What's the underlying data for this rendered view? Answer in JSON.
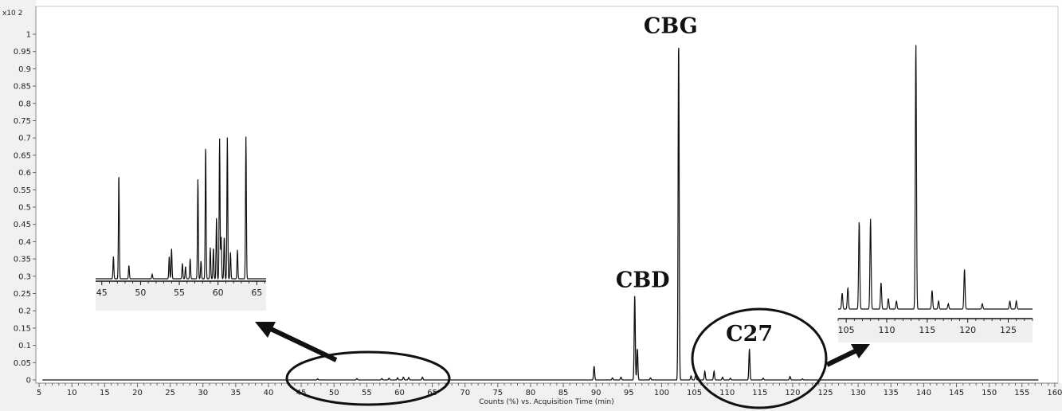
{
  "chart_data": {
    "type": "line",
    "title": "",
    "xlabel": "Counts (%) vs. Acquisition Time (min)",
    "ylabel": "",
    "y_multiplier": "x10 2",
    "xlim": [
      4.5,
      160.5
    ],
    "ylim": [
      0,
      1.08
    ],
    "grid": false,
    "x_ticks": [
      5,
      10,
      15,
      20,
      25,
      30,
      35,
      40,
      45,
      50,
      55,
      60,
      65,
      70,
      75,
      80,
      85,
      90,
      95,
      100,
      105,
      110,
      115,
      120,
      125,
      130,
      135,
      140,
      145,
      150,
      155,
      160
    ],
    "y_ticks": [
      0,
      0.05,
      0.1,
      0.15,
      0.2,
      0.25,
      0.3,
      0.35,
      0.4,
      0.45,
      0.5,
      0.55,
      0.6,
      0.65,
      0.7,
      0.75,
      0.8,
      0.85,
      0.9,
      0.95,
      1
    ],
    "line_color": "#111111",
    "series": [
      {
        "peaks": [
          {
            "x": 47.5,
            "y": 0.003
          },
          {
            "x": 53.5,
            "y": 0.004
          },
          {
            "x": 57.3,
            "y": 0.004
          },
          {
            "x": 58.4,
            "y": 0.005
          },
          {
            "x": 59.7,
            "y": 0.006
          },
          {
            "x": 60.6,
            "y": 0.008
          },
          {
            "x": 61.4,
            "y": 0.007
          },
          {
            "x": 63.5,
            "y": 0.008
          },
          {
            "x": 89.7,
            "y": 0.04
          },
          {
            "x": 92.5,
            "y": 0.006
          },
          {
            "x": 93.8,
            "y": 0.008
          },
          {
            "x": 95.9,
            "y": 0.245
          },
          {
            "x": 96.3,
            "y": 0.09
          },
          {
            "x": 98.3,
            "y": 0.006
          },
          {
            "x": 102.6,
            "y": 0.985
          },
          {
            "x": 104.5,
            "y": 0.012
          },
          {
            "x": 105.2,
            "y": 0.015
          },
          {
            "x": 106.6,
            "y": 0.025
          },
          {
            "x": 108.0,
            "y": 0.025
          },
          {
            "x": 109.3,
            "y": 0.008
          },
          {
            "x": 110.5,
            "y": 0.005
          },
          {
            "x": 113.4,
            "y": 0.09
          },
          {
            "x": 115.5,
            "y": 0.005
          },
          {
            "x": 119.6,
            "y": 0.01
          },
          {
            "x": 121.5,
            "y": 0.003
          }
        ]
      }
    ],
    "annotations": [
      {
        "text": "CBG",
        "x": 102.6,
        "y": 0.985
      },
      {
        "text": "CBD",
        "x": 95.9,
        "y": 0.245
      },
      {
        "text": "C27",
        "x": 113.4,
        "y": 0.09
      }
    ],
    "insets": [
      {
        "name": "inset-left",
        "x_ticks": [
          45,
          50,
          55,
          60,
          65
        ],
        "xlim": [
          44.2,
          66.2
        ],
        "highlight_range": [
          44,
          64
        ],
        "peaks": [
          {
            "x": 46.5,
            "y": 0.2
          },
          {
            "x": 47.2,
            "y": 0.95
          },
          {
            "x": 48.5,
            "y": 0.12
          },
          {
            "x": 51.5,
            "y": 0.04
          },
          {
            "x": 53.7,
            "y": 0.2
          },
          {
            "x": 54.0,
            "y": 0.27
          },
          {
            "x": 55.4,
            "y": 0.14
          },
          {
            "x": 55.8,
            "y": 0.11
          },
          {
            "x": 56.4,
            "y": 0.18
          },
          {
            "x": 57.4,
            "y": 0.9
          },
          {
            "x": 57.8,
            "y": 0.16
          },
          {
            "x": 58.4,
            "y": 1.2
          },
          {
            "x": 59.0,
            "y": 0.28
          },
          {
            "x": 59.4,
            "y": 0.28
          },
          {
            "x": 59.8,
            "y": 0.55
          },
          {
            "x": 60.2,
            "y": 1.26
          },
          {
            "x": 60.4,
            "y": 0.38
          },
          {
            "x": 60.8,
            "y": 0.38
          },
          {
            "x": 61.2,
            "y": 1.27
          },
          {
            "x": 61.6,
            "y": 0.24
          },
          {
            "x": 62.5,
            "y": 0.26
          },
          {
            "x": 63.6,
            "y": 1.28
          }
        ]
      },
      {
        "name": "inset-right",
        "x_ticks": [
          105,
          110,
          115,
          120,
          125
        ],
        "xlim": [
          104.0,
          128.0
        ],
        "highlight_range": [
          104,
          126
        ],
        "peaks": [
          {
            "x": 104.5,
            "y": 0.06
          },
          {
            "x": 105.2,
            "y": 0.08
          },
          {
            "x": 106.6,
            "y": 0.33
          },
          {
            "x": 108.0,
            "y": 0.34
          },
          {
            "x": 109.3,
            "y": 0.1
          },
          {
            "x": 110.2,
            "y": 0.04
          },
          {
            "x": 111.2,
            "y": 0.03
          },
          {
            "x": 113.6,
            "y": 1.0
          },
          {
            "x": 115.6,
            "y": 0.07
          },
          {
            "x": 116.4,
            "y": 0.03
          },
          {
            "x": 117.6,
            "y": 0.02
          },
          {
            "x": 119.6,
            "y": 0.15
          },
          {
            "x": 121.8,
            "y": 0.02
          },
          {
            "x": 125.2,
            "y": 0.03
          },
          {
            "x": 126.0,
            "y": 0.03
          }
        ]
      }
    ]
  }
}
